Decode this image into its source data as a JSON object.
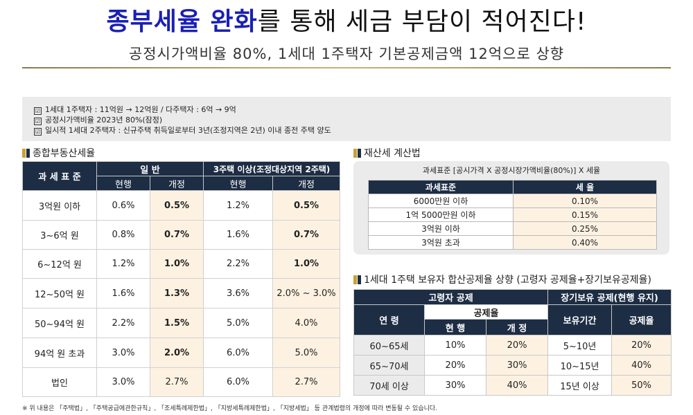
{
  "header": {
    "title_highlight": "종부세율 완화",
    "title_rest": "를 통해 세금 부담이 적어진다!",
    "subtitle": "공정시가액비율 80%, 1세대 1주택자 기본공제금액 12억으로 상향"
  },
  "notes": [
    "1세대 1주택자 : 11억원 → 12억원 / 다주택자 : 6억 → 9억",
    "공정시가액비율 2023년 80%(잠정)",
    "일시적 1세대 2주택자 : 신규주택 취득일로부터 3년(조정지역은 2년) 이내 종전 주택 양도"
  ],
  "checkbox_glyph": "☑",
  "left_section": {
    "title": "종합부동산세율",
    "header": {
      "basis": "과 세 표 준",
      "general": "일 반",
      "multi": "3주택 이상(조정대상지역 2주택)",
      "current": "현행",
      "revised": "개정"
    },
    "rows": [
      {
        "basis": "3억원 이하",
        "g_cur": "0.6%",
        "g_rev": "0.5%",
        "m_cur": "1.2%",
        "m_rev": "0.5%"
      },
      {
        "basis": "3~6억 원",
        "g_cur": "0.8%",
        "g_rev": "0.7%",
        "m_cur": "1.6%",
        "m_rev": "0.7%"
      },
      {
        "basis": "6~12억 원",
        "g_cur": "1.2%",
        "g_rev": "1.0%",
        "m_cur": "2.2%",
        "m_rev": "1.0%"
      },
      {
        "basis": "12~50억 원",
        "g_cur": "1.6%",
        "g_rev": "1.3%",
        "m_cur": "3.6%",
        "m_rev": "2.0% ~ 3.0%"
      },
      {
        "basis": "50~94억 원",
        "g_cur": "2.2%",
        "g_rev": "1.5%",
        "m_cur": "5.0%",
        "m_rev": "4.0%"
      },
      {
        "basis": "94억 원 초과",
        "g_cur": "3.0%",
        "g_rev": "2.0%",
        "m_cur": "6.0%",
        "m_rev": "5.0%"
      },
      {
        "basis": "법인",
        "g_cur": "3.0%",
        "g_rev": "2.7%",
        "m_cur": "6.0%",
        "m_rev": "2.7%"
      }
    ]
  },
  "property_tax": {
    "title": "재산세 계산법",
    "formula": "과세표준 [공시가격 X 공정시장가액비율(80%)] X 세율",
    "header": {
      "basis": "과세표준",
      "rate": "세 율"
    },
    "rows": [
      {
        "basis": "6000만원 이하",
        "rate": "0.10%"
      },
      {
        "basis": "1억 5000만원 이하",
        "rate": "0.15%"
      },
      {
        "basis": "3억원 이하",
        "rate": "0.25%"
      },
      {
        "basis": "3억원 초과",
        "rate": "0.40%"
      }
    ]
  },
  "deduction": {
    "title": "1세대 1주택 보유자 합산공제율 상향 (고령자 공제율+장기보유공제율)",
    "header": {
      "elderly": "고령자 공제",
      "long_term": "장기보유 공제(현행 유지)",
      "age": "연 령",
      "rate": "공제율",
      "current": "현 행",
      "revised": "개 정",
      "period": "보유기간",
      "lt_rate": "공제율"
    },
    "rows": [
      {
        "age": "60~65세",
        "cur": "10%",
        "rev": "20%",
        "period": "5~10년",
        "lt": "20%"
      },
      {
        "age": "65~70세",
        "cur": "20%",
        "rev": "30%",
        "period": "10~15년",
        "lt": "40%"
      },
      {
        "age": "70세 이상",
        "cur": "30%",
        "rev": "40%",
        "period": "15년 이상",
        "lt": "50%"
      }
    ]
  },
  "footer": "※ 위 내용은 「주택법」, 「주택공급에관한규칙」, 「조세특례제한법」, 「지방세특례제한법」, 「지방세법」 등  관계법령의 개정에  따라 변동될 수 있습니다.",
  "colors": {
    "highlight_blue": "#1a1fb5",
    "header_navy": "#1d2d44",
    "revised_red": "#e00000",
    "revised_cell_bg": "#fdf2e2",
    "section_mark_gold": "#c9a233"
  }
}
